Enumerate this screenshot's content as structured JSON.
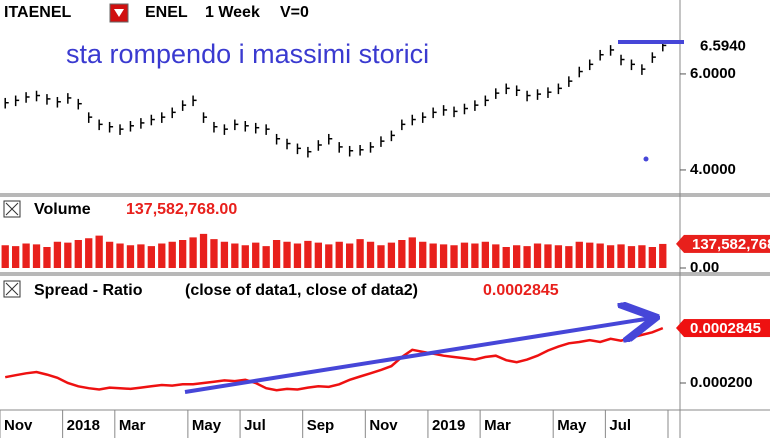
{
  "header": {
    "symbol": "ITAENEL",
    "name": "ENEL",
    "period": "1 Week",
    "v": "V=0"
  },
  "annotation": "sta rompendo i massimi storici",
  "chart_data": [
    {
      "type": "ohlc",
      "categories": [
        "Nov",
        null,
        null,
        null,
        null,
        null,
        "2018",
        null,
        null,
        null,
        null,
        "Mar",
        null,
        null,
        null,
        null,
        null,
        null,
        "May",
        null,
        null,
        null,
        null,
        "Jul",
        null,
        null,
        null,
        null,
        null,
        "Sep",
        null,
        null,
        null,
        null,
        null,
        "Nov",
        null,
        null,
        null,
        null,
        null,
        "2019",
        null,
        null,
        null,
        null,
        "Mar",
        null,
        null,
        null,
        null,
        null,
        null,
        "May",
        null,
        null,
        null,
        null,
        "Jul",
        null,
        null,
        null,
        null,
        null
      ],
      "high": [
        5.5,
        5.55,
        5.62,
        5.65,
        5.58,
        5.52,
        5.6,
        5.48,
        5.2,
        5.05,
        5.0,
        4.95,
        5.02,
        5.08,
        5.15,
        5.2,
        5.3,
        5.45,
        5.55,
        5.2,
        5.0,
        4.95,
        5.05,
        5.02,
        4.98,
        4.95,
        4.75,
        4.65,
        4.55,
        4.48,
        4.62,
        4.75,
        4.58,
        4.5,
        4.52,
        4.58,
        4.7,
        4.82,
        5.05,
        5.15,
        5.2,
        5.3,
        5.35,
        5.32,
        5.38,
        5.45,
        5.55,
        5.7,
        5.8,
        5.76,
        5.65,
        5.68,
        5.72,
        5.8,
        5.95,
        6.15,
        6.3,
        6.5,
        6.6,
        6.4,
        6.3,
        6.2,
        6.45,
        6.69
      ],
      "low": [
        5.28,
        5.33,
        5.4,
        5.43,
        5.36,
        5.3,
        5.38,
        5.26,
        4.98,
        4.83,
        4.78,
        4.73,
        4.8,
        4.86,
        4.93,
        4.98,
        5.08,
        5.23,
        5.33,
        4.98,
        4.78,
        4.73,
        4.83,
        4.8,
        4.76,
        4.73,
        4.53,
        4.43,
        4.33,
        4.26,
        4.4,
        4.53,
        4.36,
        4.28,
        4.3,
        4.36,
        4.48,
        4.6,
        4.83,
        4.93,
        4.98,
        5.08,
        5.13,
        5.1,
        5.16,
        5.23,
        5.33,
        5.48,
        5.58,
        5.54,
        5.43,
        5.46,
        5.5,
        5.58,
        5.73,
        5.93,
        6.08,
        6.28,
        6.38,
        6.18,
        6.08,
        5.98,
        6.23,
        6.47
      ],
      "close": [
        5.4,
        5.45,
        5.52,
        5.55,
        5.48,
        5.42,
        5.5,
        5.38,
        5.1,
        4.95,
        4.9,
        4.85,
        4.92,
        4.98,
        5.05,
        5.1,
        5.2,
        5.35,
        5.45,
        5.1,
        4.9,
        4.85,
        4.95,
        4.92,
        4.88,
        4.85,
        4.65,
        4.55,
        4.45,
        4.38,
        4.52,
        4.65,
        4.48,
        4.4,
        4.42,
        4.48,
        4.6,
        4.72,
        4.95,
        5.05,
        5.1,
        5.2,
        5.25,
        5.22,
        5.28,
        5.35,
        5.45,
        5.6,
        5.7,
        5.66,
        5.55,
        5.58,
        5.62,
        5.7,
        5.85,
        6.05,
        6.2,
        6.4,
        6.5,
        6.3,
        6.2,
        6.1,
        6.35,
        6.594
      ],
      "color": "#000000",
      "ylim": [
        3.52,
        7.54
      ],
      "yticks": [
        {
          "value": 4,
          "label": "4.0000"
        },
        {
          "value": 6,
          "label": "6.0000"
        }
      ],
      "last_label": "6.5940"
    },
    {
      "type": "bar",
      "title": "Volume",
      "value_text": "137,582,768.00",
      "values": [
        130000000,
        125000000,
        140000000,
        135000000,
        120000000,
        150000000,
        145000000,
        160000000,
        170000000,
        185000000,
        150000000,
        140000000,
        130000000,
        135000000,
        125000000,
        140000000,
        150000000,
        160000000,
        175000000,
        195000000,
        165000000,
        150000000,
        140000000,
        130000000,
        145000000,
        125000000,
        160000000,
        150000000,
        140000000,
        155000000,
        145000000,
        135000000,
        150000000,
        140000000,
        165000000,
        150000000,
        130000000,
        145000000,
        160000000,
        175000000,
        150000000,
        140000000,
        135000000,
        130000000,
        145000000,
        140000000,
        150000000,
        135000000,
        120000000,
        130000000,
        125000000,
        140000000,
        135000000,
        130000000,
        125000000,
        150000000,
        145000000,
        140000000,
        130000000,
        135000000,
        125000000,
        130000000,
        120000000,
        137582768
      ],
      "color": "#e8201c",
      "ylim": [
        0,
        400000000
      ],
      "yticks": [
        {
          "value": 0,
          "label": "0.00"
        }
      ]
    },
    {
      "type": "line",
      "title": "Spread - Ratio",
      "subtitle": "(close of data1,  close of data2)",
      "value_text": "0.0002845",
      "values": [
        0.000209,
        0.000212,
        0.000215,
        0.000217,
        0.000213,
        0.000208,
        0.0002,
        0.000195,
        0.000192,
        0.00019,
        0.000193,
        0.000192,
        0.000191,
        0.000193,
        0.000195,
        0.000197,
        0.000196,
        0.000198,
        0.000198,
        0.0002,
        0.000202,
        0.000204,
        0.000203,
        0.000205,
        0.0002,
        0.000192,
        0.000189,
        0.000191,
        0.00019,
        0.000193,
        0.000195,
        0.000194,
        0.000198,
        0.000205,
        0.00021,
        0.000215,
        0.00022,
        0.000226,
        0.00024,
        0.000251,
        0.000248,
        0.000245,
        0.000242,
        0.00024,
        0.000238,
        0.000236,
        0.00024,
        0.000242,
        0.000235,
        0.000232,
        0.000236,
        0.000242,
        0.00025,
        0.000256,
        0.000261,
        0.000263,
        0.000266,
        0.000263,
        0.000268,
        0.000265,
        0.00027,
        0.000274,
        0.000278,
        0.0002845
      ],
      "color": "#ee1111",
      "ylim": [
        0.0001585,
        0.000363
      ],
      "yticks": [
        {
          "value": 0.0002,
          "label": "0.000200"
        }
      ]
    }
  ]
}
